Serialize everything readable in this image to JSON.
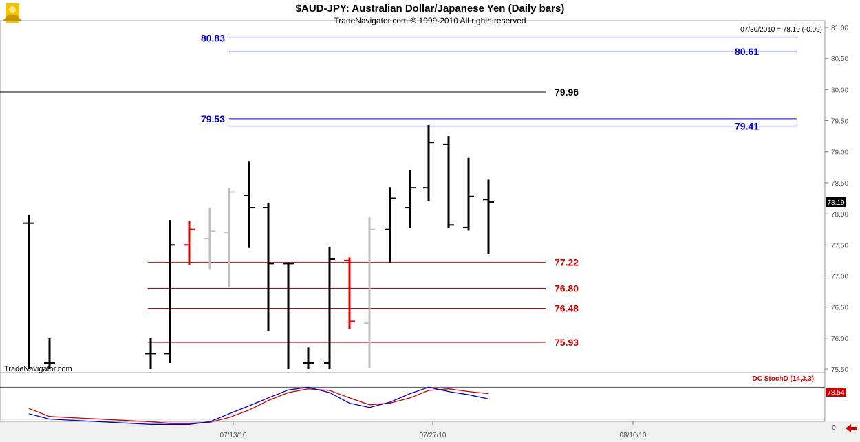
{
  "header": {
    "title": "$AUD-JPY:  Australian Dollar/Japanese Yen  (Daily bars)",
    "subtitle": "TradeNavigator.com © 1999-2010 All rights reserved"
  },
  "watermark": "TradeNavigator.com",
  "last_quote": "07/30/2010 = 78.19 (-0.09)",
  "last_price_tag": "78.19",
  "indicator": {
    "label": "DC StochD (14,3,3)",
    "value_tag": "78.54",
    "scale_bottom_label": "0"
  },
  "colors": {
    "up_bar": "#000000",
    "red_bar": "#e00000",
    "gray_bar": "#c0c0c0",
    "resistance": "#0000cc",
    "support": "#cc0000",
    "pivot": "#000000",
    "stoch_k": "#0000cc",
    "stoch_d": "#cc0000"
  },
  "chart_data": {
    "type": "ohlc",
    "title": "$AUD-JPY:  Australian Dollar/Japanese Yen  (Daily bars)",
    "ylim": [
      75.5,
      81.0
    ],
    "y_ticks": [
      "81.00",
      "80.50",
      "80.00",
      "79.50",
      "79.00",
      "78.50",
      "78.00",
      "77.50",
      "77.00",
      "76.50",
      "76.00",
      "75.50"
    ],
    "x_ticks": [
      "07/13/10",
      "07/27/10",
      "08/10/10"
    ],
    "grid": false,
    "bars": [
      {
        "open": 77.85,
        "high": 77.98,
        "low": 75.5,
        "close": 77.85,
        "color": "black"
      },
      {
        "open": 75.6,
        "high": 76.0,
        "low": 75.5,
        "close": 75.6,
        "color": "black"
      },
      {
        "open": 75.75,
        "high": 76.0,
        "low": 75.5,
        "close": 75.75,
        "color": "black"
      },
      {
        "open": 75.75,
        "high": 77.9,
        "low": 75.6,
        "close": 77.5,
        "color": "black"
      },
      {
        "open": 77.5,
        "high": 77.88,
        "low": 77.18,
        "close": 77.75,
        "color": "red"
      },
      {
        "open": 77.6,
        "high": 78.1,
        "low": 77.1,
        "close": 77.72,
        "color": "gray"
      },
      {
        "open": 77.7,
        "high": 78.42,
        "low": 76.82,
        "close": 78.35,
        "color": "gray"
      },
      {
        "open": 78.3,
        "high": 78.85,
        "low": 77.45,
        "close": 78.1,
        "color": "black"
      },
      {
        "open": 78.1,
        "high": 78.18,
        "low": 76.12,
        "close": 77.2,
        "color": "black"
      },
      {
        "open": 77.2,
        "high": 77.22,
        "low": 75.5,
        "close": 77.2,
        "color": "black"
      },
      {
        "open": 75.6,
        "high": 75.85,
        "low": 75.5,
        "close": 75.6,
        "color": "black"
      },
      {
        "open": 75.6,
        "high": 77.47,
        "low": 75.5,
        "close": 77.27,
        "color": "black"
      },
      {
        "open": 77.25,
        "high": 77.3,
        "low": 76.15,
        "close": 76.27,
        "color": "red"
      },
      {
        "open": 76.24,
        "high": 77.95,
        "low": 75.52,
        "close": 77.75,
        "color": "gray"
      },
      {
        "open": 77.75,
        "high": 78.43,
        "low": 77.22,
        "close": 78.25,
        "color": "black"
      },
      {
        "open": 78.1,
        "high": 78.7,
        "low": 77.77,
        "close": 78.42,
        "color": "black"
      },
      {
        "open": 78.42,
        "high": 79.43,
        "low": 78.2,
        "close": 79.15,
        "color": "black"
      },
      {
        "open": 79.12,
        "high": 79.25,
        "low": 77.78,
        "close": 77.82,
        "color": "black"
      },
      {
        "open": 77.78,
        "high": 78.9,
        "low": 77.73,
        "close": 78.28,
        "color": "black"
      },
      {
        "open": 78.23,
        "high": 78.55,
        "low": 77.35,
        "close": 78.19,
        "color": "black"
      }
    ],
    "levels": [
      {
        "value": 80.83,
        "label": "80.83",
        "type": "resistance"
      },
      {
        "value": 80.61,
        "label": "80.61",
        "type": "resistance"
      },
      {
        "value": 79.96,
        "label": "79.96",
        "type": "pivot"
      },
      {
        "value": 79.53,
        "label": "79.53",
        "type": "resistance"
      },
      {
        "value": 79.41,
        "label": "79.41",
        "type": "resistance"
      },
      {
        "value": 77.22,
        "label": "77.22",
        "type": "support"
      },
      {
        "value": 76.8,
        "label": "76.80",
        "type": "support"
      },
      {
        "value": 76.48,
        "label": "76.48",
        "type": "support"
      },
      {
        "value": 75.93,
        "label": "75.93",
        "type": "support"
      }
    ],
    "stochastic": {
      "ylim": [
        0,
        100
      ],
      "k": [
        30,
        20,
        10,
        10,
        10,
        15,
        30,
        45,
        60,
        75,
        80,
        70,
        50,
        42,
        52,
        68,
        80,
        72,
        66,
        58
      ],
      "d": [
        40,
        25,
        15,
        12,
        12,
        14,
        23,
        37,
        55,
        70,
        77,
        74,
        60,
        47,
        50,
        60,
        74,
        77,
        72,
        68
      ],
      "ref_lines": [
        80,
        20
      ]
    }
  }
}
